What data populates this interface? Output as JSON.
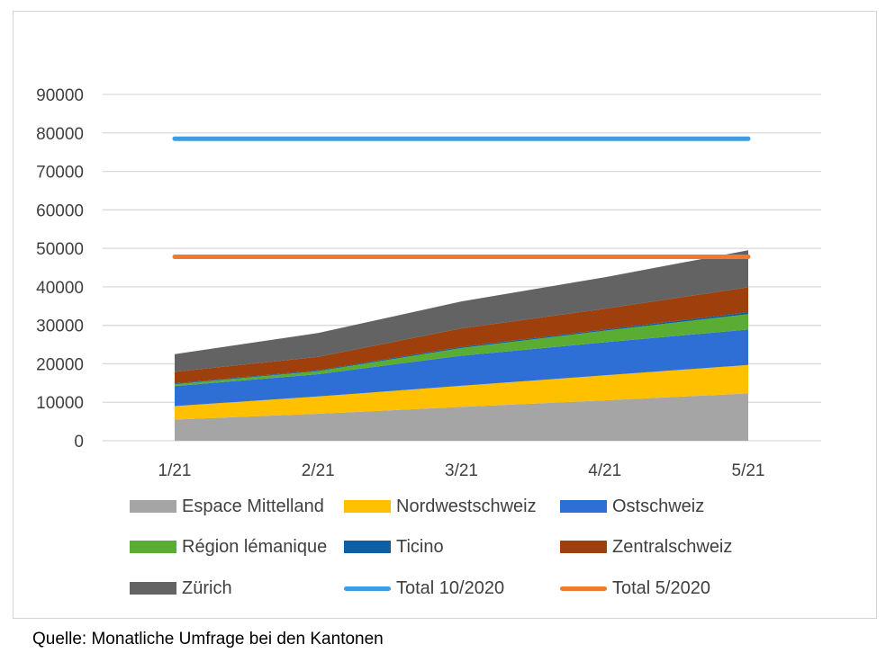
{
  "chart_data": {
    "type": "area",
    "stacked": true,
    "categories": [
      "1/21",
      "2/21",
      "3/21",
      "4/21",
      "5/21"
    ],
    "ylim": [
      0,
      90000
    ],
    "y_ticks": [
      "0",
      "10000",
      "20000",
      "30000",
      "40000",
      "50000",
      "60000",
      "70000",
      "80000",
      "90000"
    ],
    "grid": true,
    "series": [
      {
        "name": "Espace Mittelland",
        "color": "#a5a5a5",
        "values": [
          5500,
          7000,
          8800,
          10500,
          12300
        ]
      },
      {
        "name": "Nordwestschweiz",
        "color": "#ffc000",
        "values": [
          3500,
          4500,
          5500,
          6500,
          7400
        ]
      },
      {
        "name": "Ostschweiz",
        "color": "#2e6fd6",
        "values": [
          5200,
          5800,
          7800,
          8600,
          9200
        ]
      },
      {
        "name": "Région lémanique",
        "color": "#5aad32",
        "values": [
          500,
          800,
          2000,
          3000,
          4000
        ]
      },
      {
        "name": "Ticino",
        "color": "#0c5fa3",
        "values": [
          200,
          200,
          300,
          300,
          500
        ]
      },
      {
        "name": "Zentralschweiz",
        "color": "#9e3f0c",
        "values": [
          3000,
          3500,
          4800,
          5400,
          6500
        ]
      },
      {
        "name": "Zürich",
        "color": "#636363",
        "values": [
          4600,
          6200,
          7000,
          8200,
          9600
        ]
      }
    ],
    "reference_lines": [
      {
        "name": "Total 10/2020",
        "color": "#3a9ee0",
        "value": 78500
      },
      {
        "name": "Total 5/2020",
        "color": "#ef7b2e",
        "value": 47800
      }
    ]
  },
  "legend": [
    {
      "label": "Espace Mittelland",
      "kind": "area",
      "color": "#a5a5a5"
    },
    {
      "label": "Nordwestschweiz",
      "kind": "area",
      "color": "#ffc000"
    },
    {
      "label": "Ostschweiz",
      "kind": "area",
      "color": "#2e6fd6"
    },
    {
      "label": "Région lémanique",
      "kind": "area",
      "color": "#5aad32"
    },
    {
      "label": "Ticino",
      "kind": "area",
      "color": "#0c5fa3"
    },
    {
      "label": "Zentralschweiz",
      "kind": "area",
      "color": "#9e3f0c"
    },
    {
      "label": "Zürich",
      "kind": "area",
      "color": "#636363"
    },
    {
      "label": "Total 10/2020",
      "kind": "line",
      "color": "#3a9ee0"
    },
    {
      "label": "Total 5/2020",
      "kind": "line",
      "color": "#ef7b2e"
    }
  ],
  "source_note": "Quelle: Monatliche Umfrage bei den Kantonen"
}
